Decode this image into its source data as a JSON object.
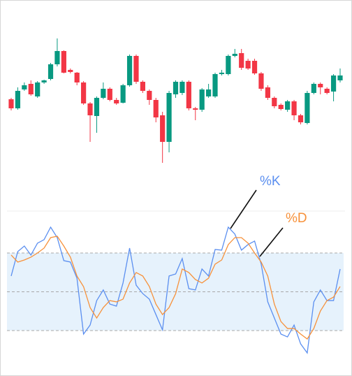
{
  "chart_data": [
    {
      "type": "candlestick",
      "up_color": "#089981",
      "down_color": "#f23645",
      "ylim": [
        0,
        100
      ],
      "open": [
        49,
        42.5,
        56,
        60,
        51,
        61,
        63.5,
        74,
        83.5,
        70,
        68,
        61,
        46,
        37,
        50,
        56.5,
        48.5,
        46.5,
        59,
        80,
        61.5,
        55,
        48.5,
        37.5,
        18.5,
        52.5,
        53.5,
        61.5,
        42.5,
        41.5,
        51,
        51,
        67,
        67,
        80,
        82,
        76.5,
        76.5,
        67.5,
        57.5,
        50,
        45,
        41.5,
        47.5,
        37.5,
        32,
        53.5,
        60,
        56.5,
        54.5,
        62.5
      ],
      "high": [
        50,
        57.5,
        61,
        62.5,
        62,
        63,
        75,
        92.5,
        84,
        71,
        68.5,
        62,
        47,
        51,
        61,
        57.5,
        50,
        60,
        81,
        81,
        62.5,
        56,
        50,
        40,
        55,
        62.5,
        62.5,
        62.5,
        43.5,
        57,
        60,
        68,
        70,
        81,
        85,
        85,
        78,
        78,
        68.5,
        59,
        51,
        46,
        48.5,
        48.5,
        38.5,
        55,
        61,
        61,
        57.5,
        67,
        71
      ],
      "low": [
        41,
        41.5,
        55,
        51.5,
        50,
        60,
        62.5,
        72.5,
        67.5,
        67.5,
        59,
        45,
        18.5,
        25,
        49,
        47.5,
        45,
        46,
        58,
        60,
        53.5,
        45,
        32.5,
        3.5,
        11,
        50,
        52,
        41,
        34,
        40,
        50,
        50,
        66,
        66,
        79,
        70,
        70,
        66.5,
        55,
        48.5,
        42.5,
        41,
        40,
        34,
        31,
        31,
        52.5,
        52.5,
        52.5,
        47.5,
        61
      ],
      "close": [
        42.5,
        55,
        59,
        52.5,
        61,
        62.5,
        74,
        83.5,
        68,
        68.5,
        61,
        46,
        37.5,
        50,
        56.5,
        48.5,
        46,
        59,
        80,
        61.5,
        55,
        48.5,
        36,
        18.5,
        53.5,
        61.5,
        61.5,
        42.5,
        41.5,
        56,
        56,
        67,
        68,
        80,
        81.5,
        71.5,
        71,
        67.5,
        56.5,
        50,
        44,
        42,
        47.5,
        37.5,
        32.5,
        53.5,
        60,
        57.5,
        53.5,
        66,
        66
      ]
    },
    {
      "type": "line",
      "ylim": [
        0,
        100
      ],
      "levels": [
        20,
        50,
        80
      ],
      "band": [
        20,
        80
      ],
      "band_color": "#e6f2fc",
      "series": [
        {
          "name": "%K",
          "color": "#5b8ff0",
          "values": [
            62.2,
            81.1,
            85.4,
            78.4,
            87.6,
            90.3,
            100,
            91.9,
            74.1,
            73,
            60.5,
            17.3,
            24.3,
            43.2,
            51.4,
            40.5,
            38.9,
            56.8,
            83.8,
            55.1,
            48.6,
            44.3,
            32.4,
            20.5,
            62.2,
            63.8,
            75.7,
            52.4,
            51.4,
            67.6,
            62.2,
            82.7,
            82.2,
            100,
            94.6,
            82.2,
            86.5,
            89.2,
            71.4,
            42.2,
            29.7,
            17.3,
            15.1,
            24.3,
            9.7,
            2.7,
            42.2,
            51.4,
            43.2,
            43.2,
            67.6
          ]
        },
        {
          "name": "%D",
          "color": "#f7913a",
          "values": [
            78.4,
            73,
            74.6,
            76.8,
            80,
            83.8,
            91.9,
            93,
            85.4,
            76.8,
            62.2,
            54,
            37.8,
            29.7,
            37.8,
            43.2,
            42.2,
            44.3,
            56.8,
            64.9,
            62.2,
            54.1,
            40.5,
            32.4,
            37.8,
            48.6,
            67.6,
            64.9,
            59.5,
            56.8,
            60.5,
            71.4,
            74.6,
            86.5,
            91.9,
            91.9,
            87.6,
            80,
            73,
            62.2,
            40.5,
            27,
            21.6,
            21.6,
            17.3,
            13.5,
            21.6,
            35.1,
            43.2,
            45.9,
            54.1
          ]
        }
      ]
    }
  ]
}
